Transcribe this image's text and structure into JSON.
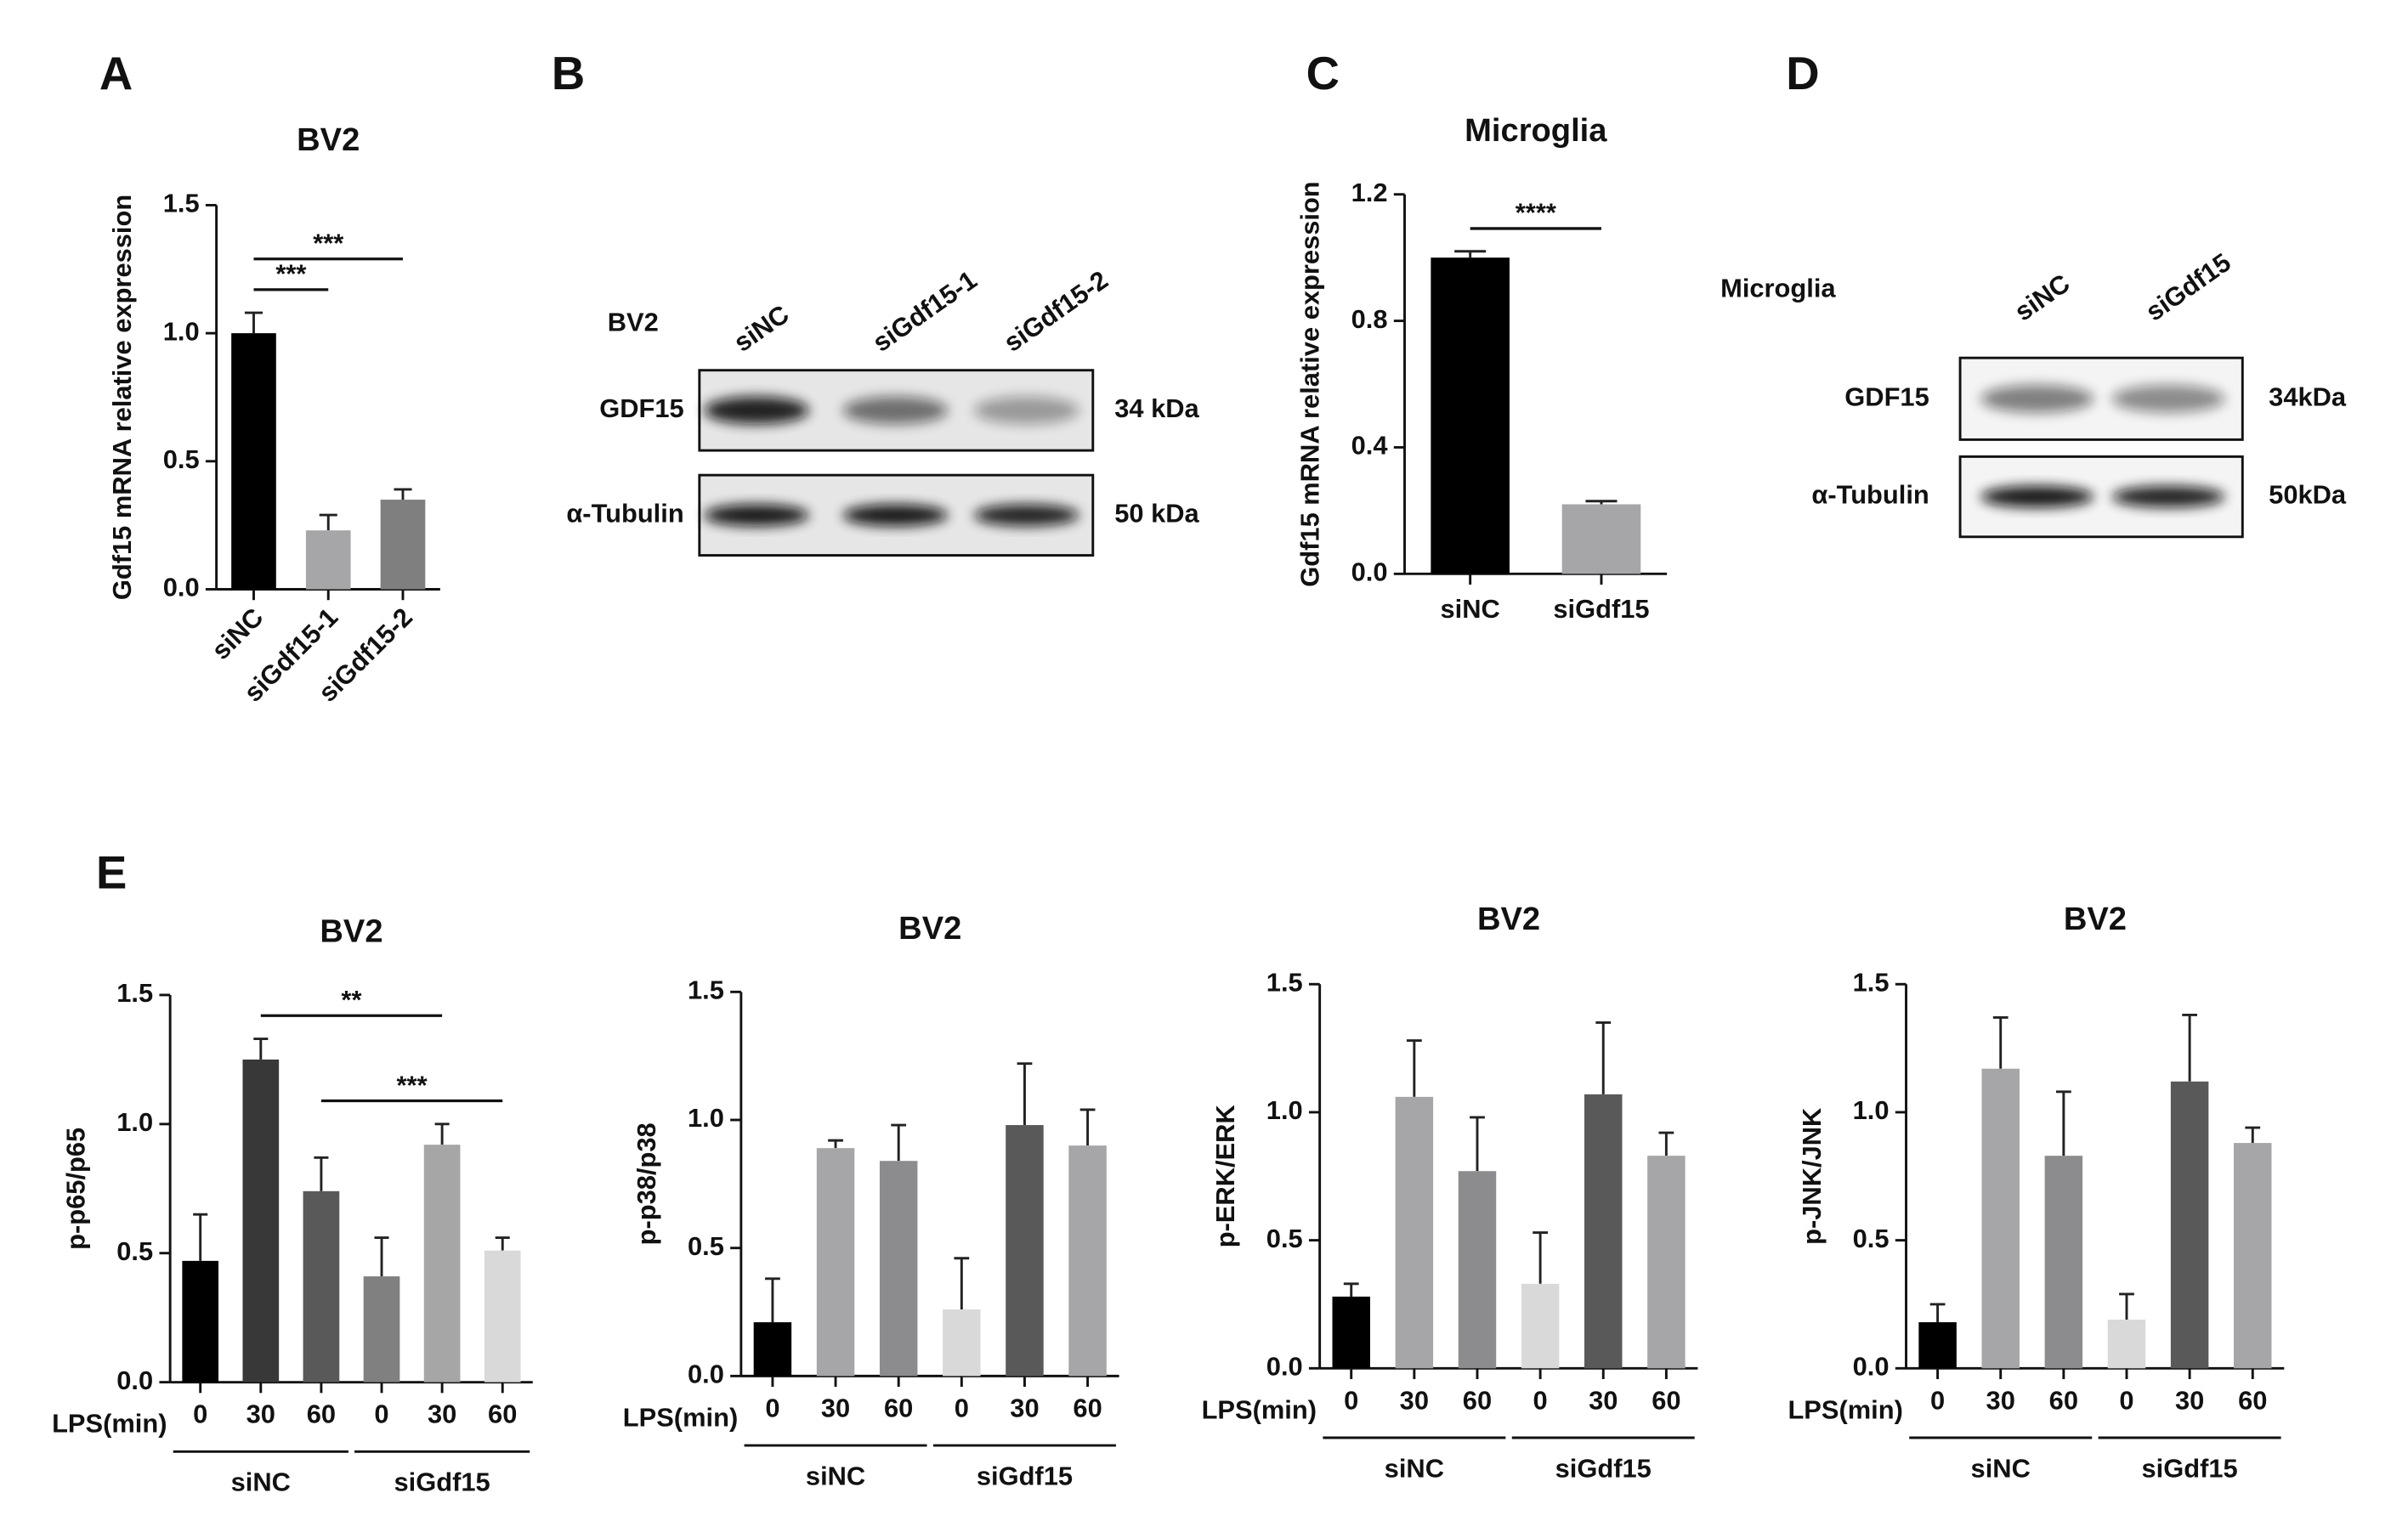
{
  "panel_labels": [
    "A",
    "B",
    "C",
    "D",
    "E"
  ],
  "chart_data": [
    {
      "type": "bar",
      "title": "BV2",
      "y_label": "Gdf15 mRNA relative expression",
      "categories": [
        "siNC",
        "siGdf15-1",
        "siGdf15-2"
      ],
      "values": [
        1.0,
        0.23,
        0.35
      ],
      "errors": [
        0.08,
        0.06,
        0.04
      ],
      "colors": [
        "#000000",
        "#a6a6a8",
        "#7f7f80"
      ],
      "ylim": [
        0,
        1.5
      ],
      "yticks": [
        {
          "value": 0,
          "label": "0.0"
        },
        0.5,
        {
          "value": 1,
          "label": "1.0"
        },
        1.5
      ],
      "annotations": [
        {
          "label": "***",
          "from": "siNC",
          "to": "siGdf15-1"
        },
        {
          "label": "***",
          "from": "siNC",
          "to": "siGdf15-2"
        }
      ]
    },
    {
      "type": "bar",
      "title": "Microglia",
      "y_label": "Gdf15 mRNA relative expression",
      "categories": [
        "siNC",
        "siGdf15"
      ],
      "values": [
        1.0,
        0.22
      ],
      "errors": [
        0.02,
        0.01
      ],
      "colors": [
        "#000000",
        "#a6a6a8"
      ],
      "ylim": [
        0,
        1.2
      ],
      "yticks": [
        {
          "value": 0,
          "label": "0.0"
        },
        0.4,
        0.8,
        1.2
      ],
      "annotations": [
        {
          "label": "****",
          "from": "siNC",
          "to": "siGdf15"
        }
      ]
    },
    {
      "type": "bar",
      "title": "BV2",
      "y_label": "p-p65/p65",
      "x_label": "LPS(min)",
      "categories": [
        "0",
        "30",
        "60",
        "0",
        "30",
        "60"
      ],
      "groups": [
        "siNC",
        "siGdf15"
      ],
      "values": [
        0.47,
        1.25,
        0.74,
        0.41,
        0.92,
        0.51
      ],
      "errors": [
        0.18,
        0.08,
        0.13,
        0.15,
        0.08,
        0.05
      ],
      "colors": [
        "#000000",
        "#383838",
        "#595959",
        "#808080",
        "#a6a6a6",
        "#d9d9d9"
      ],
      "ylim": [
        0,
        1.5
      ],
      "yticks": [
        {
          "value": 0,
          "label": "0.0"
        },
        0.5,
        {
          "value": 1,
          "label": "1.0"
        },
        1.5
      ],
      "annotations": [
        {
          "label": "**",
          "from": 1,
          "to": 4
        },
        {
          "label": "***",
          "from": 2,
          "to": 5
        }
      ]
    },
    {
      "type": "bar",
      "title": "BV2",
      "y_label": "p-p38/p38",
      "x_label": "LPS(min)",
      "categories": [
        "0",
        "30",
        "60",
        "0",
        "30",
        "60"
      ],
      "groups": [
        "siNC",
        "siGdf15"
      ],
      "values": [
        0.21,
        0.89,
        0.84,
        0.26,
        0.98,
        0.9
      ],
      "errors": [
        0.17,
        0.03,
        0.14,
        0.2,
        0.24,
        0.14
      ],
      "colors": [
        "#000000",
        "#a6a6a8",
        "#8c8c8e",
        "#d9d9d9",
        "#595959",
        "#a6a6a8"
      ],
      "ylim": [
        0,
        1.5
      ],
      "yticks": [
        {
          "value": 0,
          "label": "0.0"
        },
        0.5,
        {
          "value": 1,
          "label": "1.0"
        },
        1.5
      ]
    },
    {
      "type": "bar",
      "title": "BV2",
      "y_label": "p-ERK/ERK",
      "x_label": "LPS(min)",
      "categories": [
        "0",
        "30",
        "60",
        "0",
        "30",
        "60"
      ],
      "groups": [
        "siNC",
        "siGdf15"
      ],
      "values": [
        0.28,
        1.06,
        0.77,
        0.33,
        1.07,
        0.83
      ],
      "errors": [
        0.05,
        0.22,
        0.21,
        0.2,
        0.28,
        0.09
      ],
      "colors": [
        "#000000",
        "#a6a6a8",
        "#8c8c8e",
        "#d9d9d9",
        "#595959",
        "#a6a6a8"
      ],
      "ylim": [
        0,
        1.5
      ],
      "yticks": [
        {
          "value": 0,
          "label": "0.0"
        },
        0.5,
        {
          "value": 1,
          "label": "1.0"
        },
        1.5
      ]
    },
    {
      "type": "bar",
      "title": "BV2",
      "y_label": "p-JNK/JNK",
      "x_label": "LPS(min)",
      "categories": [
        "0",
        "30",
        "60",
        "0",
        "30",
        "60"
      ],
      "groups": [
        "siNC",
        "siGdf15"
      ],
      "values": [
        0.18,
        1.17,
        0.83,
        0.19,
        1.12,
        0.88
      ],
      "errors": [
        0.07,
        0.2,
        0.25,
        0.1,
        0.26,
        0.06
      ],
      "colors": [
        "#000000",
        "#a6a6a8",
        "#8c8c8e",
        "#d9d9d9",
        "#595959",
        "#a6a6a8"
      ],
      "ylim": [
        0,
        1.5
      ],
      "yticks": [
        {
          "value": 0,
          "label": "0.0"
        },
        0.5,
        {
          "value": 1,
          "label": "1.0"
        },
        1.5
      ]
    }
  ],
  "blots": [
    {
      "header": "BV2",
      "lanes": [
        "siNC",
        "siGdf15-1",
        "siGdf15-2"
      ],
      "rows": [
        {
          "label": "GDF15",
          "size": "34 kDa"
        },
        {
          "label": "α-Tubulin",
          "size": "50 kDa"
        }
      ]
    },
    {
      "header": "Microglia",
      "lanes": [
        "siNC",
        "siGdf15"
      ],
      "rows": [
        {
          "label": "GDF15",
          "size": "34kDa"
        },
        {
          "label": "α-Tubulin",
          "size": "50kDa"
        }
      ]
    }
  ]
}
